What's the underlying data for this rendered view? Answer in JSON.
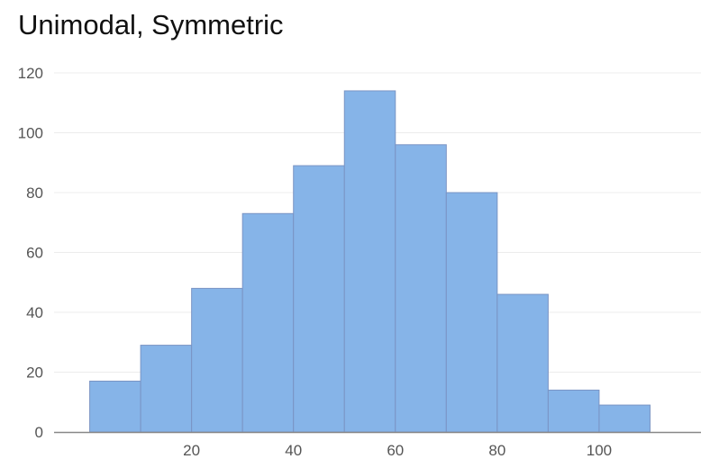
{
  "chart_data": {
    "type": "bar",
    "title": "Unimodal, Symmetric",
    "xlabel": "",
    "ylabel": "",
    "bins": [
      {
        "from": 0,
        "to": 10,
        "count": 17
      },
      {
        "from": 10,
        "to": 20,
        "count": 29
      },
      {
        "from": 20,
        "to": 30,
        "count": 48
      },
      {
        "from": 30,
        "to": 40,
        "count": 73
      },
      {
        "from": 40,
        "to": 50,
        "count": 89
      },
      {
        "from": 50,
        "to": 60,
        "count": 114
      },
      {
        "from": 60,
        "to": 70,
        "count": 96
      },
      {
        "from": 70,
        "to": 80,
        "count": 80
      },
      {
        "from": 80,
        "to": 90,
        "count": 46
      },
      {
        "from": 90,
        "to": 100,
        "count": 14
      },
      {
        "from": 100,
        "to": 110,
        "count": 9
      }
    ],
    "xlim": [
      -7,
      120
    ],
    "ylim": [
      0,
      120
    ],
    "x_ticks": [
      20,
      40,
      60,
      80,
      100
    ],
    "y_ticks": [
      0,
      20,
      40,
      60,
      80,
      100,
      120
    ],
    "grid": true,
    "legend": "none",
    "colors": {
      "bar_fill": "#86b4e8",
      "bar_stroke": "#7a94c4",
      "grid": "#ececec",
      "axis": "#888888"
    }
  }
}
